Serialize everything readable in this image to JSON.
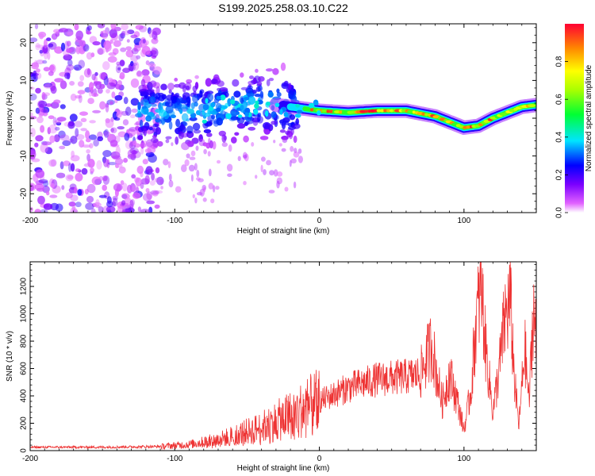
{
  "title": "S199.2025.258.03.10.C22",
  "chart_data": [
    {
      "type": "heatmap",
      "name": "spectrogram",
      "xlabel": "Height of straight line (km)",
      "ylabel": "Frequency (Hz)",
      "xlim": [
        -200,
        150
      ],
      "ylim": [
        -25,
        25
      ],
      "x_ticks": [
        -200,
        -100,
        0,
        100
      ],
      "y_ticks": [
        -20,
        -10,
        0,
        10,
        20
      ],
      "colorbar": {
        "label": "Normalized spectral amplitude",
        "range": [
          0,
          1
        ],
        "ticks": [
          0.0,
          0.2,
          0.4,
          0.6,
          0.8
        ]
      },
      "ridge": {
        "description": "Dominant frequency ridge of high amplitude",
        "x": [
          -120,
          -100,
          -80,
          -60,
          -40,
          -20,
          0,
          20,
          40,
          60,
          80,
          90,
          100,
          110,
          120,
          130,
          140,
          150
        ],
        "y": [
          2,
          1,
          2,
          3,
          4,
          3,
          2,
          1.5,
          2,
          2,
          0.5,
          -1,
          -2.5,
          -2,
          0,
          1.5,
          3,
          3.5
        ]
      },
      "noise_region": {
        "x_range": [
          -200,
          -120
        ],
        "y_range": [
          -25,
          25
        ]
      }
    },
    {
      "type": "line",
      "name": "snr",
      "xlabel": "Height of straight line (km)",
      "ylabel": "SNR (10 * v/v)",
      "xlim": [
        -200,
        150
      ],
      "ylim": [
        0,
        1380
      ],
      "x_ticks": [
        -200,
        -100,
        0,
        100
      ],
      "y_ticks": [
        0,
        200,
        400,
        600,
        800,
        1000,
        1200
      ],
      "color": "#ee3333",
      "trend": {
        "x": [
          -200,
          -150,
          -110,
          -90,
          -70,
          -60,
          -40,
          -20,
          0,
          20,
          40,
          60,
          70,
          75,
          78,
          80,
          85,
          90,
          95,
          100,
          105,
          108,
          112,
          115,
          120,
          125,
          128,
          132,
          135,
          138,
          142,
          145,
          148,
          150
        ],
        "y": [
          25,
          25,
          30,
          45,
          80,
          110,
          170,
          260,
          360,
          460,
          520,
          540,
          560,
          700,
          790,
          620,
          350,
          560,
          380,
          150,
          450,
          900,
          1200,
          750,
          280,
          650,
          950,
          1100,
          500,
          180,
          750,
          350,
          1050,
          800
        ]
      }
    }
  ]
}
